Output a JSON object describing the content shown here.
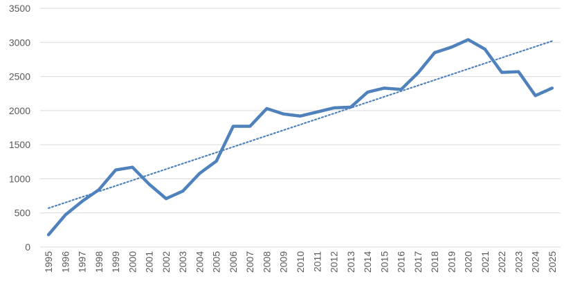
{
  "chart_data": {
    "type": "line",
    "title": "",
    "xlabel": "",
    "ylabel": "",
    "categories": [
      "1995",
      "1996",
      "1997",
      "1998",
      "1999",
      "2000",
      "2001",
      "2002",
      "2003",
      "2004",
      "2005",
      "2006",
      "2007",
      "2008",
      "2009",
      "2010",
      "2011",
      "2012",
      "2013",
      "2014",
      "2015",
      "2016",
      "2017",
      "2018",
      "2019",
      "2020",
      "2021",
      "2022",
      "2023",
      "2024",
      "2025"
    ],
    "series": [
      {
        "values": [
          180,
          470,
          670,
          840,
          1130,
          1170,
          920,
          710,
          820,
          1080,
          1260,
          1770,
          1770,
          2030,
          1950,
          1920,
          1980,
          2040,
          2050,
          2270,
          2330,
          2310,
          2550,
          2850,
          2930,
          3040,
          2900,
          2560,
          2570,
          2220,
          2330
        ],
        "color": "#4f81bd"
      }
    ],
    "trendline": {
      "type": "linear",
      "style": "dotted",
      "color": "#4f81bd",
      "start": 570,
      "end": 3020
    },
    "ylim": [
      0,
      3500
    ],
    "yticks": [
      0,
      500,
      1000,
      1500,
      2000,
      2500,
      3000,
      3500
    ],
    "grid": true,
    "legend": "none"
  }
}
